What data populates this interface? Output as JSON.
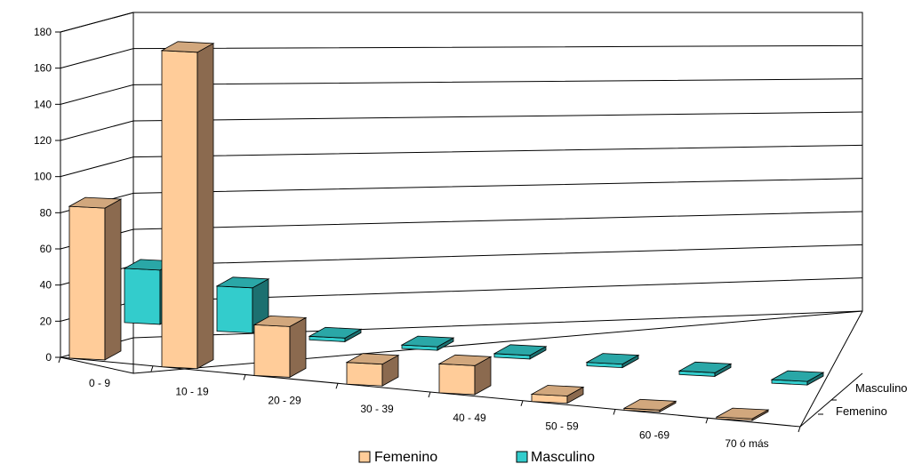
{
  "chart_data": {
    "type": "bar",
    "style": "3d-clustered-column",
    "categories": [
      "0 - 9",
      "10 - 19",
      "20 - 29",
      "30 - 39",
      "40 - 49",
      "50 - 59",
      "60 -69",
      "70 ó más"
    ],
    "series": [
      {
        "name": "Femenino",
        "values": [
          84,
          175,
          28,
          12,
          16,
          4,
          1,
          1
        ],
        "color": "#FFCC99"
      },
      {
        "name": "Masculino",
        "values": [
          30,
          25,
          2,
          2,
          2,
          2,
          2,
          2
        ],
        "color": "#33CCCC"
      }
    ],
    "depth_labels": [
      "Masculino",
      "Femenino"
    ],
    "y_ticks": [
      "0",
      "20",
      "40",
      "60",
      "80",
      "100",
      "120",
      "140",
      "160",
      "180"
    ],
    "ylim": [
      0,
      180
    ],
    "grid": true,
    "legend_position": "bottom"
  }
}
